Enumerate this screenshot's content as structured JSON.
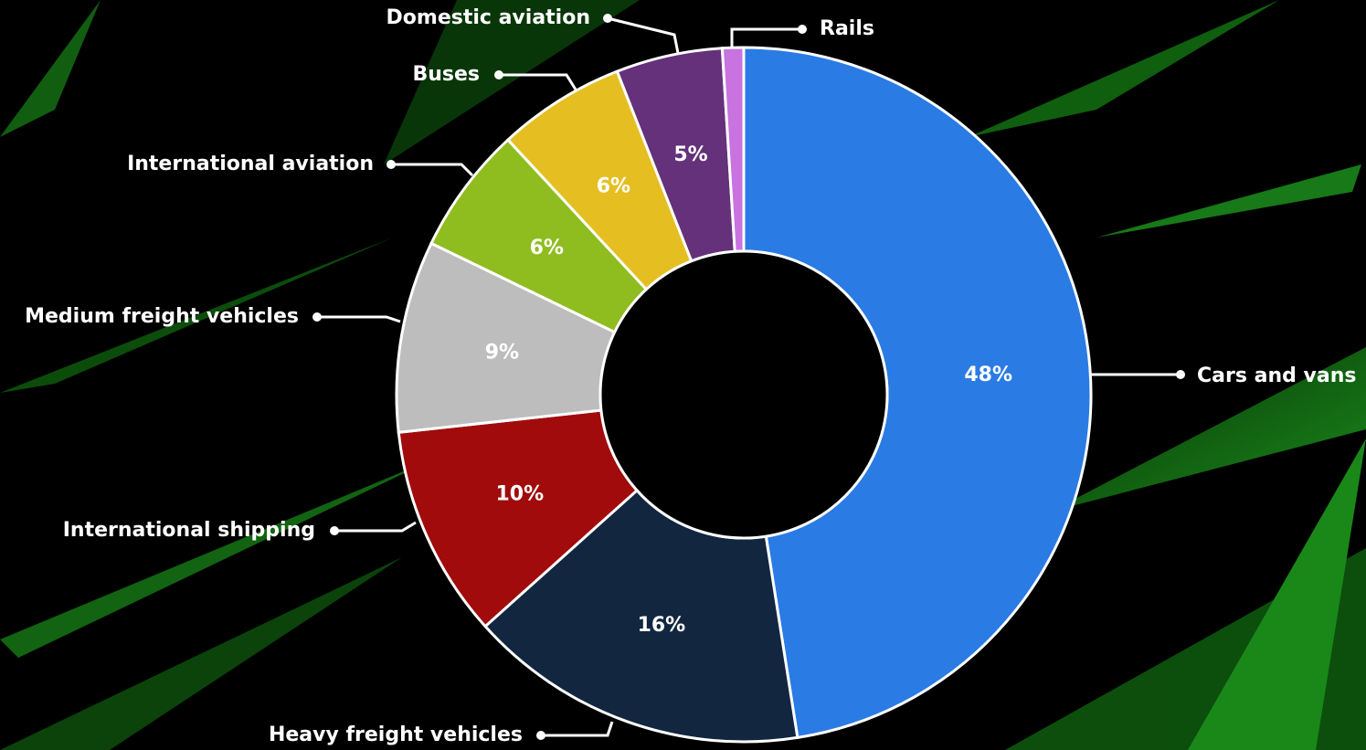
{
  "chart_data": {
    "type": "pie",
    "donut": true,
    "categories": [
      "Cars and vans",
      "Heavy freight vehicles",
      "International shipping",
      "Medium freight vehicles",
      "International aviation",
      "Buses",
      "Domestic aviation",
      "Rails"
    ],
    "values": [
      48,
      16,
      10,
      9,
      6,
      6,
      5,
      1
    ],
    "value_labels": [
      "48%",
      "16%",
      "10%",
      "9%",
      "6%",
      "6%",
      "5%",
      null
    ],
    "colors": [
      "#2a7be4",
      "#12263f",
      "#a10b0b",
      "#bdbdbd",
      "#8fbd20",
      "#e5bf22",
      "#65317a",
      "#c873e0"
    ]
  }
}
